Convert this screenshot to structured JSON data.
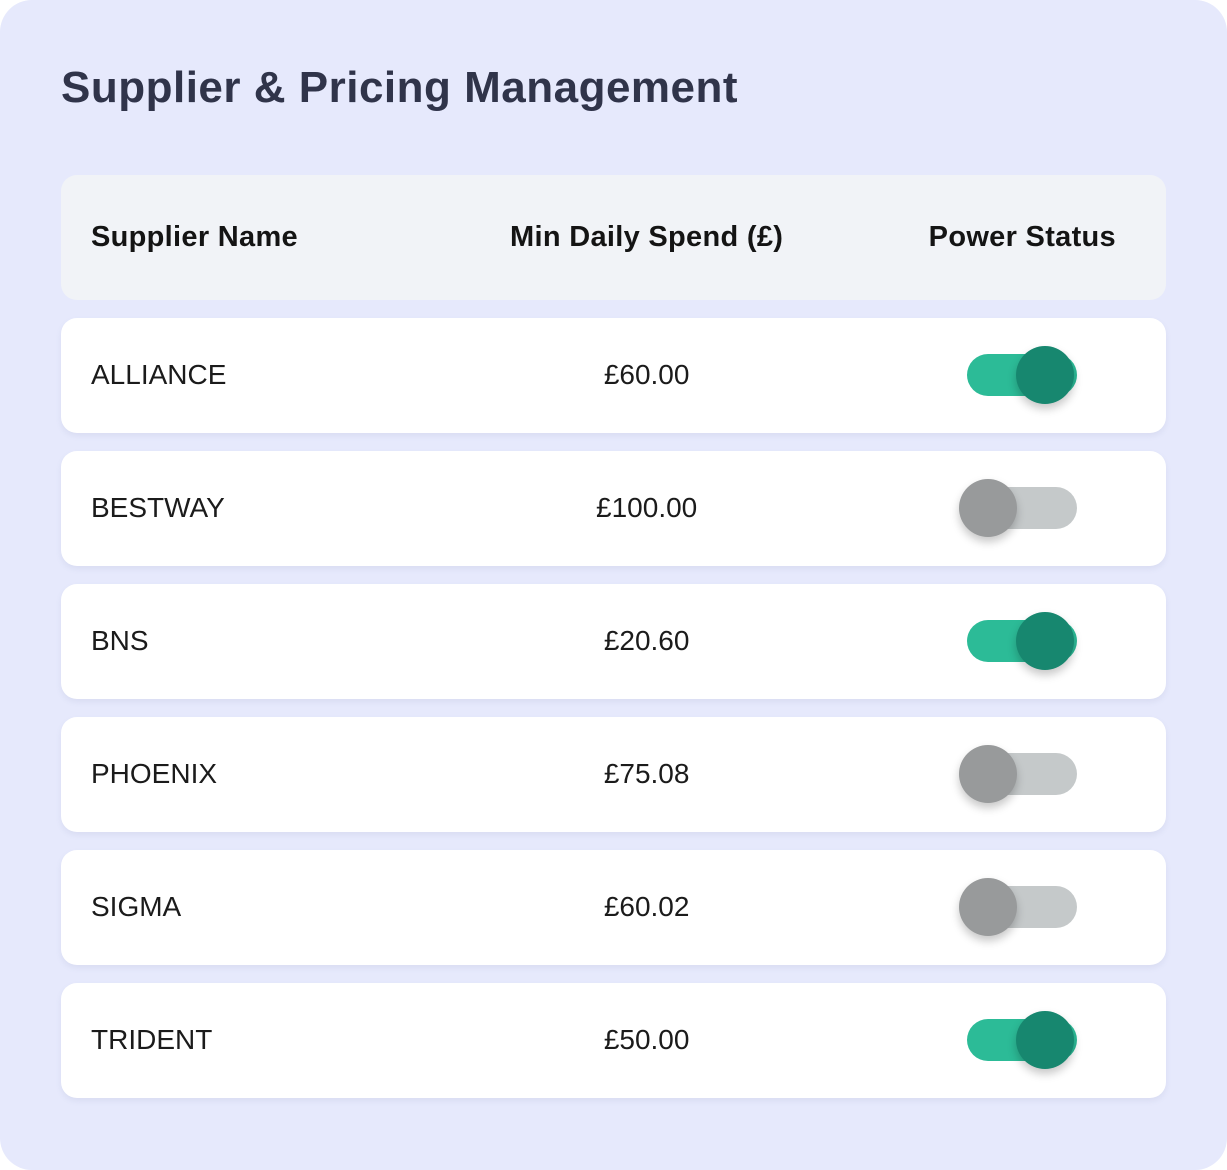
{
  "page": {
    "title": "Supplier & Pricing Management"
  },
  "table": {
    "headers": {
      "supplier": "Supplier Name",
      "min_daily_spend": "Min Daily Spend (£)",
      "power_status": "Power Status"
    },
    "rows": [
      {
        "supplier": "ALLIANCE",
        "min_daily_spend": "£60.00",
        "power_on": true
      },
      {
        "supplier": "BESTWAY",
        "min_daily_spend": "£100.00",
        "power_on": false
      },
      {
        "supplier": "BNS",
        "min_daily_spend": "£20.60",
        "power_on": true
      },
      {
        "supplier": "PHOENIX",
        "min_daily_spend": "£75.08",
        "power_on": false
      },
      {
        "supplier": "SIGMA",
        "min_daily_spend": "£60.02",
        "power_on": false
      },
      {
        "supplier": "TRIDENT",
        "min_daily_spend": "£50.00",
        "power_on": true
      }
    ]
  },
  "colors": {
    "container_bg": "#E6E9FC",
    "header_card_bg": "#F1F3F7",
    "row_card_bg": "#FFFFFF",
    "title_color": "#30344A",
    "toggle_on_track": "#2CBB97",
    "toggle_on_knob": "#17876F",
    "toggle_off_track": "#C5C9CA",
    "toggle_off_knob": "#989A9B"
  }
}
